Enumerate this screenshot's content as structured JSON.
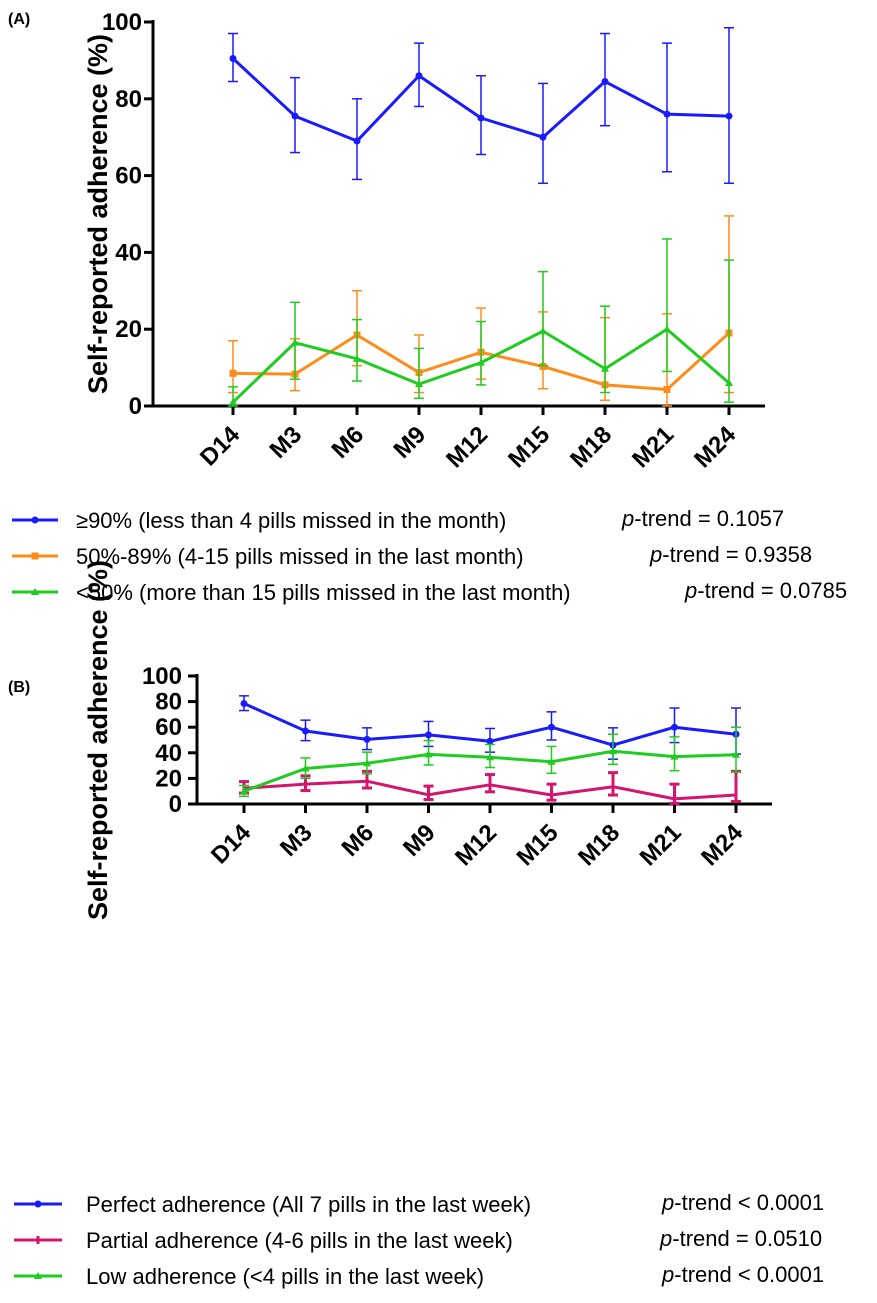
{
  "chart_data": [
    {
      "panel": "(A)",
      "type": "line",
      "ylabel": "Self-reported adherence (%)",
      "xlabel": "",
      "categories": [
        "D14",
        "M3",
        "M6",
        "M9",
        "M12",
        "M15",
        "M18",
        "M21",
        "M24"
      ],
      "ylim": [
        0,
        100
      ],
      "yticks": [
        "0",
        "20",
        "40",
        "60",
        "80",
        "100"
      ],
      "grid": false,
      "legend_position": "bottom",
      "series": [
        {
          "name": "≥90% (less than 4 pills missed in the month)",
          "color": "#1a1aff",
          "marker": "circle",
          "values": [
            90.5,
            75.5,
            69,
            86,
            75,
            70,
            84.5,
            76,
            75.5
          ],
          "err_low": [
            84.5,
            66,
            59,
            78,
            65.5,
            58,
            73,
            61,
            58
          ],
          "err_high": [
            97,
            85.5,
            80,
            94.5,
            86,
            84,
            97,
            94.5,
            98.5
          ],
          "p_trend": "0.1057",
          "p_op": "="
        },
        {
          "name": "50%-89% (4-15 pills missed in the last month)",
          "color": "#ff8c1a",
          "marker": "square",
          "values": [
            8.5,
            8.3,
            18.5,
            8.7,
            14,
            10.3,
            5.5,
            4.3,
            19
          ],
          "err_low": [
            3.5,
            4,
            10.5,
            3.5,
            7,
            4.5,
            1.5,
            0,
            3.5
          ],
          "err_high": [
            17,
            17.5,
            30,
            18.5,
            25.5,
            24.5,
            23,
            24,
            49.5
          ],
          "p_trend": "0.9358",
          "p_op": "="
        },
        {
          "name": "<50% (more than 15 pills missed in the last month)",
          "color": "#1fcc1f",
          "marker": "triangle",
          "values": [
            1,
            16.5,
            12.3,
            5.7,
            11.3,
            19.5,
            9.7,
            20,
            6
          ],
          "err_low": [
            0,
            7,
            6.5,
            2,
            5.5,
            10.5,
            3.5,
            9,
            1
          ],
          "err_high": [
            5,
            27,
            22.5,
            15,
            22,
            35,
            26,
            43.5,
            38
          ],
          "p_trend": "0.0785",
          "p_op": "="
        }
      ]
    },
    {
      "panel": "(B)",
      "type": "line",
      "ylabel": "Self-reported adherence (%)",
      "xlabel": "",
      "categories": [
        "D14",
        "M3",
        "M6",
        "M9",
        "M12",
        "M15",
        "M18",
        "M21",
        "M24"
      ],
      "ylim": [
        0,
        100
      ],
      "yticks": [
        "0",
        "20",
        "40",
        "60",
        "80",
        "100"
      ],
      "grid": false,
      "legend_position": "bottom",
      "series": [
        {
          "name": "Perfect adherence (All 7 pills in the last week)",
          "color": "#1a1aff",
          "marker": "circle",
          "values": [
            78.5,
            57,
            50.5,
            54,
            49,
            60,
            46,
            60,
            54.5
          ],
          "err_low": [
            73,
            49.5,
            42.5,
            45,
            40.5,
            50,
            35,
            48,
            39
          ],
          "err_high": [
            84.5,
            65.5,
            59.5,
            64.5,
            59,
            72,
            59.5,
            75,
            75
          ],
          "p_trend": "0.0001",
          "p_op": "<"
        },
        {
          "name": "Partial adherence (4-6 pills in the last week)",
          "color": "#d4156e",
          "marker": "tick",
          "values": [
            12.3,
            15.5,
            17.8,
            7.2,
            15,
            7,
            13.5,
            4,
            7
          ],
          "err_low": [
            8.5,
            10.5,
            12.5,
            3.5,
            9.5,
            3,
            7,
            0.5,
            2
          ],
          "err_high": [
            17.5,
            22,
            25.5,
            14,
            23,
            15.5,
            24.5,
            15.5,
            25.5
          ],
          "p_trend": "0.0510",
          "p_op": "="
        },
        {
          "name": "Low adherence (<4 pills in the last week)",
          "color": "#1fcc1f",
          "marker": "triangle",
          "values": [
            10,
            27.7,
            31.8,
            38.8,
            36.5,
            33,
            41.2,
            37,
            38.5
          ],
          "err_low": [
            6,
            20,
            23.5,
            30.5,
            28.5,
            24,
            31,
            26,
            25
          ],
          "err_high": [
            14.5,
            36,
            40.5,
            49.5,
            46.5,
            45,
            54.5,
            52.5,
            60
          ],
          "p_trend": "0.0001",
          "p_op": "<"
        }
      ]
    }
  ]
}
